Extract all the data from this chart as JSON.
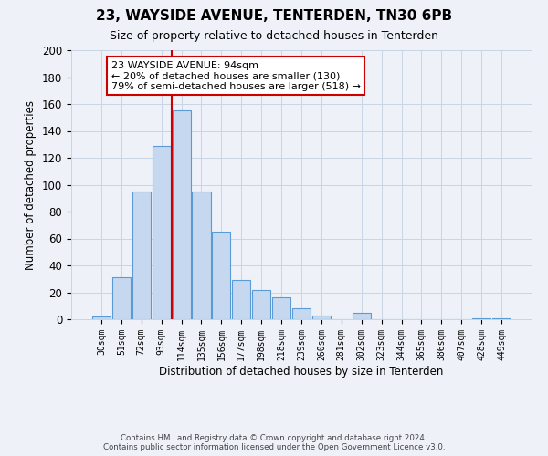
{
  "title": "23, WAYSIDE AVENUE, TENTERDEN, TN30 6PB",
  "subtitle": "Size of property relative to detached houses in Tenterden",
  "xlabel": "Distribution of detached houses by size in Tenterden",
  "ylabel": "Number of detached properties",
  "bar_labels": [
    "30sqm",
    "51sqm",
    "72sqm",
    "93sqm",
    "114sqm",
    "135sqm",
    "156sqm",
    "177sqm",
    "198sqm",
    "218sqm",
    "239sqm",
    "260sqm",
    "281sqm",
    "302sqm",
    "323sqm",
    "344sqm",
    "365sqm",
    "386sqm",
    "407sqm",
    "428sqm",
    "449sqm"
  ],
  "bar_values": [
    2,
    31,
    95,
    129,
    155,
    95,
    65,
    29,
    22,
    16,
    8,
    3,
    0,
    5,
    0,
    0,
    0,
    0,
    0,
    1,
    1
  ],
  "bar_color": "#c5d8ef",
  "bar_edge_color": "#5b9bd5",
  "vline_idx": 3,
  "vline_color": "#cc0000",
  "annotation_title": "23 WAYSIDE AVENUE: 94sqm",
  "annotation_line1": "← 20% of detached houses are smaller (130)",
  "annotation_line2": "79% of semi-detached houses are larger (518) →",
  "annotation_box_color": "#ffffff",
  "annotation_box_edge_color": "#cc0000",
  "ylim": [
    0,
    200
  ],
  "yticks": [
    0,
    20,
    40,
    60,
    80,
    100,
    120,
    140,
    160,
    180,
    200
  ],
  "footer_line1": "Contains HM Land Registry data © Crown copyright and database right 2024.",
  "footer_line2": "Contains public sector information licensed under the Open Government Licence v3.0.",
  "bg_color": "#eef2f8",
  "grid_color": "#c8d4e4"
}
